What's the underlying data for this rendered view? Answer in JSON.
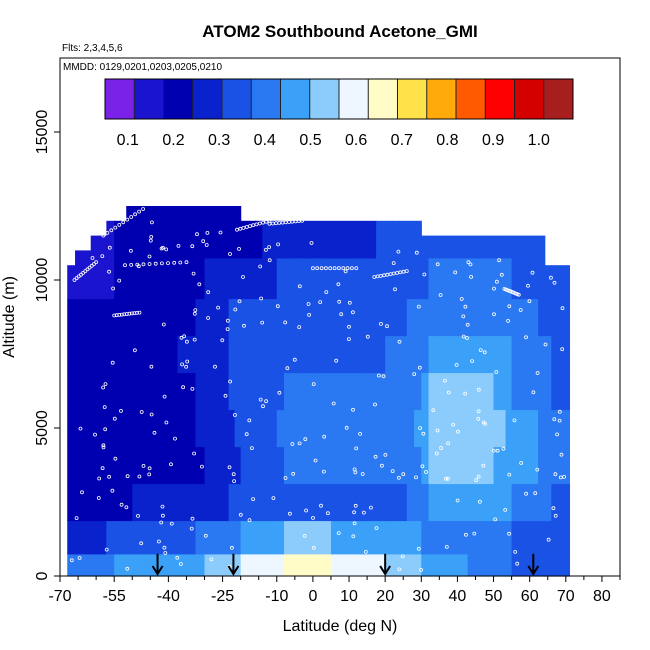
{
  "chart_data": {
    "type": "heatmap",
    "title": "ATOM2 Southbound Acetone_GMI",
    "annotations": {
      "flights": "Flts: 2,3,4,5,6",
      "dates": "MMDD: 0129,0201,0203,0205,0210"
    },
    "xlabel": "Latitude (deg N)",
    "ylabel": "Altitude (m)",
    "xlim": [
      -70,
      85
    ],
    "ylim": [
      0,
      17500
    ],
    "x_ticks": [
      -70,
      -55,
      -40,
      -25,
      -10,
      0,
      10,
      20,
      30,
      40,
      50,
      60,
      70,
      80
    ],
    "x_tick_labels": [
      "-70",
      "-55",
      "-40",
      "-25",
      "-10",
      "0",
      "10",
      "20",
      "30",
      "40",
      "50",
      "60",
      "70",
      "80"
    ],
    "y_ticks": [
      0,
      5000,
      10000,
      15000
    ],
    "y_tick_labels": [
      "0",
      "5000",
      "10000",
      "15000"
    ],
    "colorbar": {
      "range": [
        0.05,
        1.075
      ],
      "tick_values": [
        0.1,
        0.2,
        0.3,
        0.4,
        0.5,
        0.6,
        0.7,
        0.8,
        0.9,
        1.0
      ],
      "tick_labels": [
        "0.1",
        "0.2",
        "0.3",
        "0.4",
        "0.5",
        "0.6",
        "0.7",
        "0.8",
        "0.9",
        "1.0"
      ],
      "colors": [
        "#7a22e8",
        "#1a14cf",
        "#0000b0",
        "#0a22cc",
        "#1a52e6",
        "#2a78f2",
        "#3aa0f8",
        "#8cccfc",
        "#eef6ff",
        "#fffcc8",
        "#ffe24a",
        "#ffaa0a",
        "#ff5a00",
        "#ff0000",
        "#d40000",
        "#a61e1e"
      ]
    },
    "value_levels": [
      0.1,
      0.2,
      0.26,
      0.32,
      0.38,
      0.45,
      0.52,
      0.6,
      0.7
    ],
    "latitude_bands": [
      {
        "lat": [
          -68,
          -55
        ],
        "values": [
          0.42,
          0.3,
          0.22,
          0.2,
          0.2,
          0.2,
          0.2,
          0.18,
          0.16,
          0.12
        ]
      },
      {
        "lat": [
          -55,
          -45
        ],
        "values": [
          0.45,
          0.32,
          0.24,
          0.2,
          0.2,
          0.2,
          0.2,
          0.2,
          0.2,
          0.2
        ]
      },
      {
        "lat": [
          -45,
          -30
        ],
        "values": [
          0.48,
          0.36,
          0.27,
          0.22,
          0.22,
          0.22,
          0.24,
          0.22,
          0.2,
          0.2
        ]
      },
      {
        "lat": [
          -30,
          -20
        ],
        "values": [
          0.52,
          0.4,
          0.3,
          0.26,
          0.28,
          0.3,
          0.3,
          0.3,
          0.26,
          0.22
        ]
      },
      {
        "lat": [
          -20,
          -8
        ],
        "values": [
          0.58,
          0.44,
          0.34,
          0.33,
          0.36,
          0.36,
          0.35,
          0.34,
          0.3,
          0.24
        ]
      },
      {
        "lat": [
          -8,
          5
        ],
        "values": [
          0.68,
          0.52,
          0.36,
          0.38,
          0.4,
          0.38,
          0.36,
          0.34,
          0.32,
          0.28
        ]
      },
      {
        "lat": [
          5,
          20
        ],
        "values": [
          0.6,
          0.48,
          0.35,
          0.38,
          0.4,
          0.38,
          0.36,
          0.35,
          0.34,
          0.3
        ]
      },
      {
        "lat": [
          20,
          32
        ],
        "values": [
          0.52,
          0.44,
          0.37,
          0.4,
          0.42,
          0.4,
          0.38,
          0.37,
          0.36,
          0.32
        ]
      },
      {
        "lat": [
          32,
          45
        ],
        "values": [
          0.45,
          0.42,
          0.46,
          0.52,
          0.54,
          0.52,
          0.48,
          0.42,
          0.38,
          0.34
        ]
      },
      {
        "lat": [
          45,
          55
        ],
        "values": [
          0.4,
          0.4,
          0.46,
          0.5,
          0.52,
          0.5,
          0.46,
          0.42,
          0.38,
          0.34
        ]
      },
      {
        "lat": [
          55,
          66
        ],
        "values": [
          0.36,
          0.36,
          0.4,
          0.44,
          0.44,
          0.42,
          0.4,
          0.38,
          0.36,
          0.32
        ]
      },
      {
        "lat": [
          66,
          71
        ],
        "values": [
          0.34,
          0.34,
          0.36,
          0.38,
          0.38,
          0.36,
          0.35,
          0.34,
          0.32,
          0.3
        ]
      }
    ],
    "altitude_levels": [
      250,
      1250,
      2500,
      3750,
      5000,
      6250,
      7500,
      8750,
      10000,
      11500
    ],
    "ceilings": [
      {
        "lat": [
          -68,
          -65
        ],
        "top": 10500
      },
      {
        "lat": [
          -65,
          -62
        ],
        "top": 11000
      },
      {
        "lat": [
          -62,
          -57
        ],
        "top": 11500
      },
      {
        "lat": [
          -57,
          -52
        ],
        "top": 12000
      },
      {
        "lat": [
          -52,
          -35
        ],
        "top": 12500
      },
      {
        "lat": [
          -35,
          -20
        ],
        "top": 12500
      },
      {
        "lat": [
          -20,
          -12
        ],
        "top": 12000
      },
      {
        "lat": [
          -12,
          30
        ],
        "top": 12000
      },
      {
        "lat": [
          30,
          64
        ],
        "top": 11500
      },
      {
        "lat": [
          64,
          71
        ],
        "top": 10500
      }
    ],
    "arrow_latitudes": [
      -43,
      -22,
      20,
      61
    ]
  }
}
